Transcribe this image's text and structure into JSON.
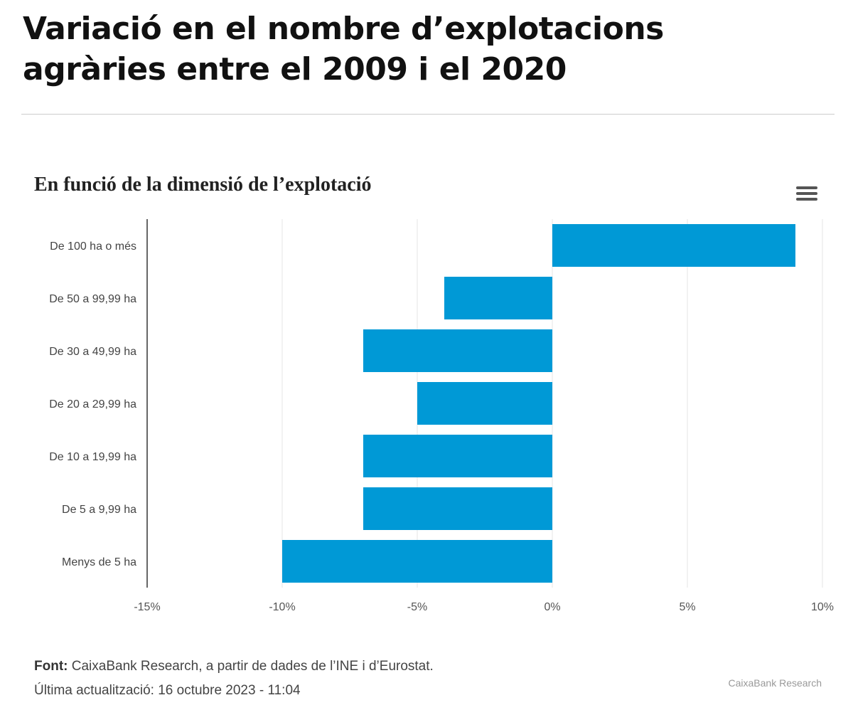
{
  "title": "Variació en el nombre d’explotacions agràries entre el 2009 i el 2020",
  "menu_icon": "hamburger-menu-icon",
  "chart_data": {
    "type": "bar",
    "orientation": "horizontal",
    "title": "En funció de la dimensió de l’explotació",
    "categories": [
      "De 100 ha o més",
      "De 50 a 99,99 ha",
      "De 30 a 49,99 ha",
      "De 20 a 29,99 ha",
      "De 10 a 19,99 ha",
      "De 5 a 9,99 ha",
      "Menys de 5 ha"
    ],
    "values": [
      9.0,
      -4.0,
      -7.0,
      -5.0,
      -7.0,
      -7.0,
      -10.0
    ],
    "unit": "%",
    "xlim": [
      -15,
      10
    ],
    "xticks": [
      "-15%",
      "-10%",
      "-5%",
      "0%",
      "5%",
      "10%"
    ],
    "grid": true,
    "bar_color": "#0099d6"
  },
  "footer": {
    "source_label": "Font:",
    "source_text": " CaixaBank Research, a partir de dades de l’INE i d’Eurostat.",
    "updated": "Última actualització: 16 octubre 2023 - 11:04",
    "credit": "CaixaBank Research"
  }
}
